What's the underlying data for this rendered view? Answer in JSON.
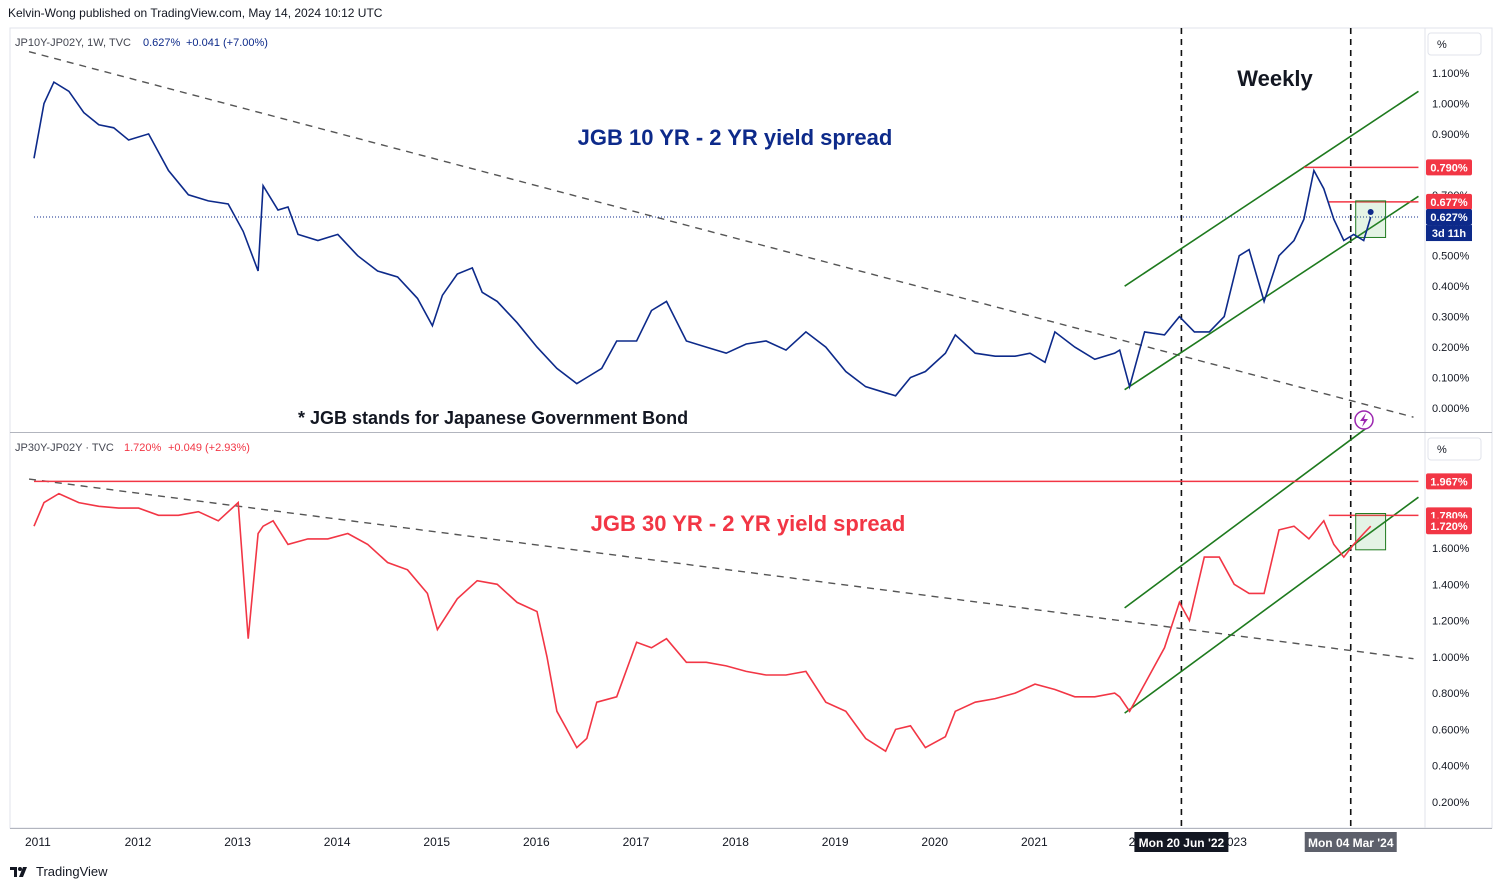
{
  "header": {
    "published": "Kelvin-Wong published on TradingView.com, May 14, 2024 10:12 UTC"
  },
  "footer": {
    "brand": "TradingView"
  },
  "colors": {
    "blue": "#0d2a8a",
    "red": "#f23645",
    "green": "#1e7a1e",
    "grid": "#e0e3eb",
    "dash": "#555555"
  },
  "x_axis": {
    "year_ticks": [
      "2011",
      "2012",
      "2013",
      "2014",
      "2015",
      "2016",
      "2017",
      "2018",
      "2019",
      "2020",
      "2021",
      "20",
      "2023"
    ],
    "markers": [
      "Mon 20 Jun '22",
      "Mon 04 Mar '24"
    ]
  },
  "chart_data": [
    {
      "type": "line",
      "panel": "top",
      "symbol_line": "JP10Y-JP02Y, 1W, TVC",
      "last_value": "0.627%",
      "change": "+0.041 (+7.00%)",
      "title": "JGB 10 YR - 2 YR yield spread",
      "annotation_weekly": "Weekly",
      "annotation_note": "* JGB stands for Japanese Government Bond",
      "unit": "%",
      "yticks": [
        "1.100%",
        "1.000%",
        "0.900%",
        "0.800%",
        "0.700%",
        "0.600%",
        "0.500%",
        "0.400%",
        "0.300%",
        "0.200%",
        "0.100%",
        "0.000%"
      ],
      "ylim": [
        0.0,
        1.1
      ],
      "price_labels": [
        {
          "text": "0.790%",
          "value": 0.79,
          "color": "#f23645"
        },
        {
          "text": "0.677%",
          "value": 0.677,
          "color": "#f23645"
        },
        {
          "text": "0.627%",
          "value": 0.627,
          "color": "#0d2a8a"
        }
      ],
      "countdown": "3d 11h",
      "series": {
        "x": [
          2010.95,
          2011.05,
          2011.15,
          2011.3,
          2011.45,
          2011.6,
          2011.75,
          2011.9,
          2012.1,
          2012.3,
          2012.5,
          2012.7,
          2012.9,
          2013.05,
          2013.2,
          2013.25,
          2013.4,
          2013.5,
          2013.6,
          2013.8,
          2014.0,
          2014.2,
          2014.4,
          2014.6,
          2014.8,
          2014.95,
          2015.05,
          2015.2,
          2015.35,
          2015.45,
          2015.6,
          2015.8,
          2016.0,
          2016.2,
          2016.4,
          2016.5,
          2016.65,
          2016.8,
          2017.0,
          2017.15,
          2017.3,
          2017.5,
          2017.7,
          2017.9,
          2018.1,
          2018.3,
          2018.5,
          2018.7,
          2018.9,
          2019.1,
          2019.3,
          2019.5,
          2019.6,
          2019.75,
          2019.9,
          2020.1,
          2020.2,
          2020.4,
          2020.6,
          2020.8,
          2020.95,
          2021.1,
          2021.2,
          2021.4,
          2021.6,
          2021.8,
          2021.85,
          2021.95,
          2022.1,
          2022.3,
          2022.45,
          2022.6,
          2022.75,
          2022.9,
          2023.05,
          2023.15,
          2023.3,
          2023.45,
          2023.6,
          2023.7,
          2023.8,
          2023.9,
          2024.0,
          2024.1,
          2024.2,
          2024.3,
          2024.37
        ],
        "values": [
          0.82,
          1.0,
          1.07,
          1.04,
          0.97,
          0.93,
          0.92,
          0.88,
          0.9,
          0.78,
          0.7,
          0.68,
          0.67,
          0.58,
          0.45,
          0.73,
          0.65,
          0.66,
          0.57,
          0.55,
          0.57,
          0.5,
          0.45,
          0.43,
          0.36,
          0.27,
          0.37,
          0.44,
          0.46,
          0.38,
          0.35,
          0.28,
          0.2,
          0.13,
          0.08,
          0.1,
          0.13,
          0.22,
          0.22,
          0.32,
          0.35,
          0.22,
          0.2,
          0.18,
          0.21,
          0.22,
          0.19,
          0.25,
          0.2,
          0.12,
          0.07,
          0.05,
          0.04,
          0.1,
          0.12,
          0.18,
          0.24,
          0.18,
          0.17,
          0.17,
          0.18,
          0.15,
          0.25,
          0.2,
          0.16,
          0.18,
          0.19,
          0.07,
          0.25,
          0.24,
          0.3,
          0.25,
          0.25,
          0.3,
          0.5,
          0.52,
          0.35,
          0.5,
          0.55,
          0.62,
          0.78,
          0.72,
          0.62,
          0.55,
          0.57,
          0.55,
          0.627
        ]
      }
    },
    {
      "type": "line",
      "panel": "bottom",
      "symbol_line": "JP30Y-JP02Y · TVC",
      "last_value": "1.720%",
      "change": "+0.049 (+2.93%)",
      "title": "JGB 30 YR - 2 YR yield spread",
      "unit": "%",
      "yticks": [
        "1.600%",
        "1.400%",
        "1.200%",
        "1.000%",
        "0.800%",
        "0.600%",
        "0.400%",
        "0.200%"
      ],
      "ylim": [
        0.06,
        2.07
      ],
      "price_labels": [
        {
          "text": "1.967%",
          "value": 1.967,
          "color": "#f23645"
        },
        {
          "text": "1.780%",
          "value": 1.78,
          "color": "#f23645"
        },
        {
          "text": "1.720%",
          "value": 1.72,
          "color": "#f23645"
        }
      ],
      "series": {
        "x": [
          2010.95,
          2011.05,
          2011.2,
          2011.4,
          2011.6,
          2011.8,
          2012.0,
          2012.2,
          2012.4,
          2012.6,
          2012.8,
          2013.0,
          2013.1,
          2013.2,
          2013.25,
          2013.35,
          2013.5,
          2013.7,
          2013.9,
          2014.1,
          2014.3,
          2014.5,
          2014.7,
          2014.9,
          2015.0,
          2015.2,
          2015.4,
          2015.6,
          2015.8,
          2016.0,
          2016.1,
          2016.2,
          2016.3,
          2016.4,
          2016.5,
          2016.6,
          2016.8,
          2017.0,
          2017.15,
          2017.3,
          2017.5,
          2017.7,
          2017.9,
          2018.1,
          2018.3,
          2018.5,
          2018.7,
          2018.9,
          2019.1,
          2019.3,
          2019.5,
          2019.6,
          2019.75,
          2019.9,
          2020.1,
          2020.2,
          2020.4,
          2020.6,
          2020.8,
          2021.0,
          2021.2,
          2021.4,
          2021.6,
          2021.8,
          2021.85,
          2021.95,
          2022.1,
          2022.3,
          2022.45,
          2022.55,
          2022.7,
          2022.85,
          2023.0,
          2023.15,
          2023.3,
          2023.45,
          2023.6,
          2023.75,
          2023.9,
          2024.0,
          2024.1,
          2024.2,
          2024.3,
          2024.37
        ],
        "values": [
          1.72,
          1.85,
          1.9,
          1.85,
          1.83,
          1.82,
          1.82,
          1.78,
          1.78,
          1.8,
          1.75,
          1.85,
          1.1,
          1.68,
          1.72,
          1.75,
          1.62,
          1.65,
          1.65,
          1.68,
          1.62,
          1.52,
          1.48,
          1.35,
          1.15,
          1.32,
          1.42,
          1.4,
          1.3,
          1.25,
          1.0,
          0.7,
          0.6,
          0.5,
          0.55,
          0.75,
          0.78,
          1.08,
          1.05,
          1.1,
          0.97,
          0.97,
          0.95,
          0.92,
          0.9,
          0.9,
          0.92,
          0.75,
          0.7,
          0.55,
          0.48,
          0.6,
          0.62,
          0.5,
          0.56,
          0.7,
          0.75,
          0.77,
          0.8,
          0.85,
          0.82,
          0.78,
          0.78,
          0.8,
          0.78,
          0.7,
          0.85,
          1.05,
          1.3,
          1.2,
          1.55,
          1.55,
          1.4,
          1.35,
          1.35,
          1.7,
          1.72,
          1.65,
          1.75,
          1.62,
          1.55,
          1.62,
          1.68,
          1.72
        ]
      }
    }
  ]
}
